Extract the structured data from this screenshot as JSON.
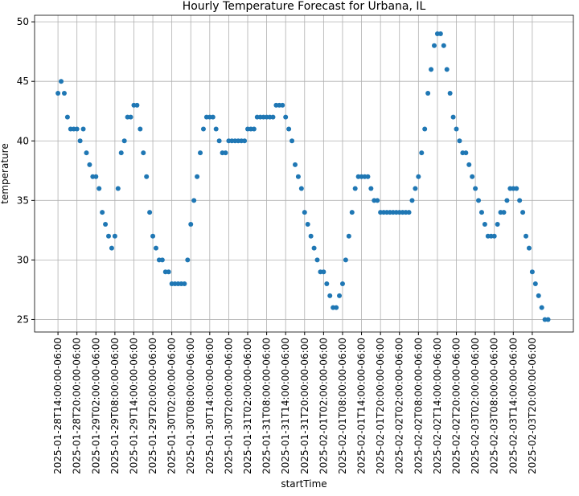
{
  "chart_data": {
    "type": "scatter",
    "title": "Hourly Temperature Forecast for Urbana, IL",
    "x_label": "startTime",
    "y_label": "temperature",
    "color": "#1f77b4",
    "grid": true,
    "categories": [
      "2025-01-28T14:00:00-06:00",
      null,
      null,
      null,
      null,
      null,
      "2025-01-28T20:00:00-06:00",
      null,
      null,
      null,
      null,
      null,
      "2025-01-29T02:00:00-06:00",
      null,
      null,
      null,
      null,
      null,
      "2025-01-29T08:00:00-06:00",
      null,
      null,
      null,
      null,
      null,
      "2025-01-29T14:00:00-06:00",
      null,
      null,
      null,
      null,
      null,
      "2025-01-29T20:00:00-06:00",
      null,
      null,
      null,
      null,
      null,
      "2025-01-30T02:00:00-06:00",
      null,
      null,
      null,
      null,
      null,
      "2025-01-30T08:00:00-06:00",
      null,
      null,
      null,
      null,
      null,
      "2025-01-30T14:00:00-06:00",
      null,
      null,
      null,
      null,
      null,
      "2025-01-30T20:00:00-06:00",
      null,
      null,
      null,
      null,
      null,
      "2025-01-31T02:00:00-06:00",
      null,
      null,
      null,
      null,
      null,
      "2025-01-31T08:00:00-06:00",
      null,
      null,
      null,
      null,
      null,
      "2025-01-31T14:00:00-06:00",
      null,
      null,
      null,
      null,
      null,
      "2025-01-31T20:00:00-06:00",
      null,
      null,
      null,
      null,
      null,
      "2025-02-01T02:00:00-06:00",
      null,
      null,
      null,
      null,
      null,
      "2025-02-01T08:00:00-06:00",
      null,
      null,
      null,
      null,
      null,
      "2025-02-01T14:00:00-06:00",
      null,
      null,
      null,
      null,
      null,
      "2025-02-01T20:00:00-06:00",
      null,
      null,
      null,
      null,
      null,
      "2025-02-02T02:00:00-06:00",
      null,
      null,
      null,
      null,
      null,
      "2025-02-02T08:00:00-06:00",
      null,
      null,
      null,
      null,
      null,
      "2025-02-02T14:00:00-06:00",
      null,
      null,
      null,
      null,
      null,
      "2025-02-02T20:00:00-06:00",
      null,
      null,
      null,
      null,
      null,
      "2025-02-03T02:00:00-06:00",
      null,
      null,
      null,
      null,
      null,
      "2025-02-03T08:00:00-06:00",
      null,
      null,
      null,
      null,
      null,
      "2025-02-03T14:00:00-06:00",
      null,
      null,
      null,
      null,
      null,
      "2025-02-03T20:00:00-06:00",
      null,
      null,
      null,
      null,
      null
    ],
    "values": [
      44,
      45,
      44,
      42,
      41,
      41,
      41,
      40,
      41,
      39,
      38,
      37,
      37,
      36,
      34,
      33,
      32,
      31,
      32,
      36,
      39,
      40,
      42,
      42,
      43,
      43,
      41,
      39,
      37,
      34,
      32,
      31,
      30,
      30,
      29,
      29,
      28,
      28,
      28,
      28,
      28,
      30,
      33,
      35,
      37,
      39,
      41,
      42,
      42,
      42,
      41,
      40,
      39,
      39,
      40,
      40,
      40,
      40,
      40,
      40,
      41,
      41,
      41,
      42,
      42,
      42,
      42,
      42,
      42,
      43,
      43,
      43,
      42,
      41,
      40,
      38,
      37,
      36,
      34,
      33,
      32,
      31,
      30,
      29,
      29,
      28,
      27,
      26,
      26,
      27,
      28,
      30,
      32,
      34,
      36,
      37,
      37,
      37,
      37,
      36,
      35,
      35,
      34,
      34,
      34,
      34,
      34,
      34,
      34,
      34,
      34,
      34,
      35,
      36,
      37,
      39,
      41,
      44,
      46,
      48,
      49,
      49,
      48,
      46,
      44,
      42,
      41,
      40,
      39,
      39,
      38,
      37,
      36,
      35,
      34,
      33,
      32,
      32,
      32,
      33,
      34,
      34,
      35,
      36,
      36,
      36,
      35,
      34,
      32,
      31,
      29,
      28,
      27,
      26,
      25,
      25
    ],
    "xlim": [
      -7.4,
      163
    ],
    "ylim": [
      23.95,
      50.55
    ],
    "yticks": [
      25,
      30,
      35,
      40,
      45,
      50
    ]
  }
}
